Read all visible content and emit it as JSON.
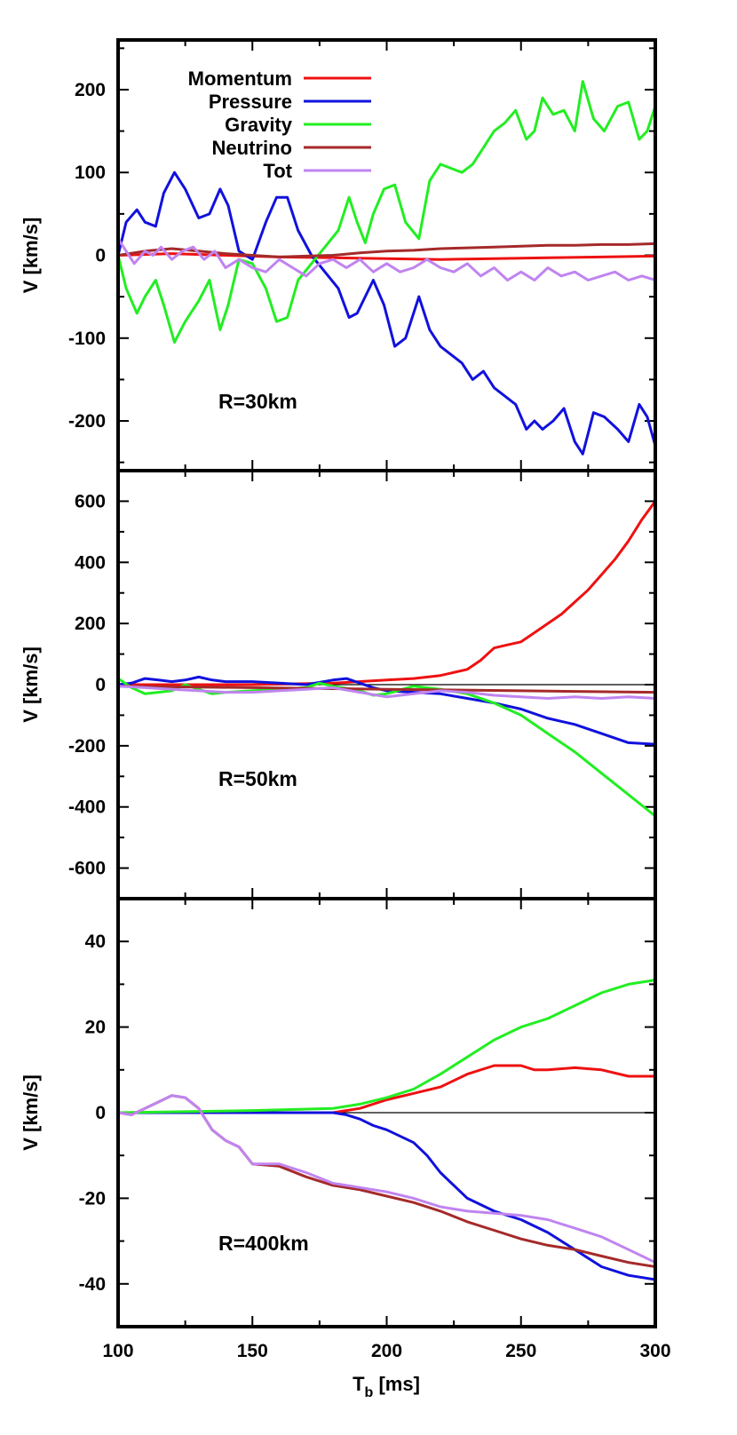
{
  "colors": {
    "Momentum": "#ee1111",
    "Pressure": "#1111dd",
    "Gravity": "#22ee22",
    "Neutrino": "#a52a2a",
    "Tot": "#c084f0"
  },
  "chart_data": [
    {
      "type": "line",
      "panel_label": "R=30km",
      "xlim": [
        100,
        300
      ],
      "ylim": [
        -260,
        260
      ],
      "yticks": [
        -200,
        -100,
        0,
        100,
        200
      ],
      "xticks": [
        100,
        150,
        200,
        250,
        300
      ],
      "ylabel": "V [km/s]",
      "zero_line": false,
      "legend": {
        "placement": "top-left",
        "entries": [
          "Momentum",
          "Pressure",
          "Gravity",
          "Neutrino",
          "Tot"
        ]
      },
      "series": [
        {
          "name": "Momentum",
          "x": [
            100,
            120,
            140,
            160,
            180,
            200,
            220,
            240,
            260,
            280,
            300
          ],
          "y": [
            0,
            2,
            0,
            -2,
            -3,
            -4,
            -5,
            -4,
            -3,
            -2,
            -1
          ]
        },
        {
          "name": "Pressure",
          "x": [
            100,
            103,
            107,
            110,
            114,
            117,
            121,
            125,
            130,
            134,
            138,
            141,
            145,
            150,
            155,
            159,
            163,
            167,
            172,
            177,
            182,
            186,
            189,
            192,
            195,
            199,
            203,
            207,
            212,
            216,
            220,
            224,
            228,
            232,
            236,
            240,
            244,
            248,
            252,
            255,
            258,
            262,
            266,
            270,
            273,
            277,
            281,
            286,
            290,
            294,
            297,
            300
          ],
          "y": [
            0,
            40,
            55,
            40,
            35,
            75,
            100,
            80,
            45,
            50,
            80,
            60,
            5,
            -5,
            40,
            70,
            70,
            30,
            0,
            -20,
            -40,
            -75,
            -70,
            -50,
            -30,
            -60,
            -110,
            -100,
            -50,
            -90,
            -110,
            -120,
            -130,
            -150,
            -140,
            -160,
            -170,
            -180,
            -210,
            -200,
            -210,
            -200,
            -185,
            -225,
            -240,
            -190,
            -195,
            -210,
            -225,
            -180,
            -195,
            -230
          ]
        },
        {
          "name": "Gravity",
          "x": [
            100,
            103,
            107,
            110,
            114,
            117,
            121,
            125,
            130,
            134,
            138,
            141,
            145,
            150,
            155,
            159,
            163,
            167,
            172,
            177,
            182,
            186,
            189,
            192,
            195,
            199,
            203,
            207,
            212,
            216,
            220,
            224,
            228,
            232,
            236,
            240,
            244,
            248,
            252,
            255,
            258,
            262,
            266,
            270,
            273,
            277,
            281,
            286,
            290,
            294,
            297,
            300
          ],
          "y": [
            0,
            -40,
            -70,
            -50,
            -30,
            -60,
            -105,
            -80,
            -55,
            -30,
            -90,
            -60,
            -5,
            -10,
            -40,
            -80,
            -75,
            -30,
            -10,
            10,
            30,
            70,
            40,
            15,
            50,
            80,
            85,
            40,
            20,
            90,
            110,
            105,
            100,
            110,
            130,
            150,
            160,
            175,
            140,
            150,
            190,
            170,
            175,
            150,
            210,
            165,
            150,
            180,
            185,
            140,
            150,
            180
          ]
        },
        {
          "name": "Neutrino",
          "x": [
            100,
            110,
            120,
            130,
            140,
            150,
            160,
            170,
            180,
            190,
            200,
            210,
            220,
            230,
            240,
            250,
            260,
            270,
            280,
            290,
            300
          ],
          "y": [
            0,
            5,
            8,
            5,
            2,
            0,
            -2,
            -1,
            0,
            3,
            5,
            6,
            8,
            9,
            10,
            11,
            12,
            12,
            13,
            13,
            14
          ]
        },
        {
          "name": "Tot",
          "x": [
            100,
            103,
            106,
            110,
            113,
            116,
            120,
            124,
            128,
            132,
            136,
            140,
            145,
            150,
            155,
            160,
            165,
            170,
            175,
            180,
            185,
            190,
            195,
            200,
            205,
            210,
            215,
            220,
            225,
            230,
            235,
            240,
            245,
            250,
            255,
            260,
            265,
            270,
            275,
            280,
            285,
            290,
            295,
            300
          ],
          "y": [
            20,
            5,
            -10,
            5,
            0,
            10,
            -5,
            5,
            10,
            -5,
            5,
            -15,
            -5,
            -15,
            -20,
            -5,
            -15,
            -25,
            -10,
            -5,
            -15,
            -5,
            -20,
            -10,
            -20,
            -15,
            -5,
            -15,
            -20,
            -10,
            -25,
            -15,
            -30,
            -20,
            -30,
            -15,
            -25,
            -20,
            -30,
            -25,
            -20,
            -30,
            -25,
            -30
          ]
        }
      ]
    },
    {
      "type": "line",
      "panel_label": "R=50km",
      "xlim": [
        100,
        300
      ],
      "ylim": [
        -700,
        700
      ],
      "yticks": [
        -600,
        -400,
        -200,
        0,
        200,
        400,
        600
      ],
      "xticks": [
        100,
        150,
        200,
        250,
        300
      ],
      "ylabel": "V [km/s]",
      "zero_line": true,
      "series": [
        {
          "name": "Momentum",
          "x": [
            100,
            150,
            180,
            200,
            210,
            220,
            230,
            235,
            240,
            245,
            250,
            255,
            260,
            265,
            270,
            275,
            280,
            285,
            290,
            295,
            300
          ],
          "y": [
            0,
            0,
            5,
            15,
            20,
            30,
            50,
            80,
            120,
            130,
            140,
            170,
            200,
            230,
            270,
            310,
            360,
            410,
            470,
            540,
            600
          ]
        },
        {
          "name": "Pressure",
          "x": [
            100,
            105,
            110,
            115,
            120,
            125,
            130,
            135,
            140,
            150,
            160,
            170,
            180,
            185,
            190,
            195,
            200,
            210,
            220,
            230,
            240,
            250,
            260,
            270,
            280,
            290,
            300
          ],
          "y": [
            0,
            5,
            20,
            15,
            10,
            15,
            25,
            15,
            10,
            10,
            5,
            0,
            15,
            20,
            5,
            -10,
            -20,
            -25,
            -30,
            -45,
            -60,
            -80,
            -110,
            -130,
            -160,
            -190,
            -195
          ]
        },
        {
          "name": "Gravity",
          "x": [
            100,
            105,
            110,
            115,
            120,
            125,
            130,
            135,
            140,
            150,
            160,
            170,
            175,
            180,
            190,
            195,
            200,
            210,
            220,
            230,
            240,
            250,
            260,
            270,
            280,
            290,
            300
          ],
          "y": [
            20,
            -10,
            -30,
            -25,
            -20,
            0,
            -15,
            -30,
            -25,
            -20,
            -15,
            -10,
            5,
            -5,
            -20,
            -35,
            -30,
            -5,
            -15,
            -30,
            -60,
            -100,
            -160,
            -220,
            -290,
            -360,
            -430
          ]
        },
        {
          "name": "Neutrino",
          "x": [
            100,
            150,
            200,
            250,
            300
          ],
          "y": [
            -5,
            -10,
            -15,
            -20,
            -25
          ]
        },
        {
          "name": "Tot",
          "x": [
            100,
            110,
            120,
            130,
            140,
            150,
            160,
            170,
            180,
            190,
            200,
            210,
            220,
            230,
            240,
            250,
            260,
            270,
            280,
            290,
            300
          ],
          "y": [
            -5,
            -10,
            -15,
            -20,
            -25,
            -25,
            -20,
            -15,
            -10,
            -25,
            -40,
            -30,
            -20,
            -25,
            -35,
            -40,
            -45,
            -40,
            -45,
            -40,
            -45
          ]
        }
      ]
    },
    {
      "type": "line",
      "panel_label": "R=400km",
      "xlim": [
        100,
        300
      ],
      "ylim": [
        -50,
        50
      ],
      "yticks": [
        -40,
        -20,
        0,
        20,
        40
      ],
      "xticks": [
        100,
        150,
        200,
        250,
        300
      ],
      "xticklabels": [
        "100",
        "150",
        "200",
        "250",
        "300"
      ],
      "ylabel": "V [km/s]",
      "xlabel_main": "T",
      "xlabel_sub": "b",
      "xlabel_unit": " [ms]",
      "zero_line": true,
      "series": [
        {
          "name": "Momentum",
          "x": [
            100,
            150,
            180,
            190,
            200,
            210,
            220,
            230,
            240,
            250,
            255,
            260,
            270,
            280,
            290,
            300
          ],
          "y": [
            0,
            0,
            0,
            1,
            3,
            4.5,
            6,
            9,
            11,
            11,
            10,
            10,
            10.5,
            10,
            8.5,
            8.5
          ]
        },
        {
          "name": "Pressure",
          "x": [
            100,
            150,
            180,
            185,
            190,
            195,
            200,
            210,
            215,
            220,
            230,
            240,
            250,
            260,
            270,
            280,
            290,
            300
          ],
          "y": [
            0,
            0,
            0,
            -0.5,
            -1.5,
            -3,
            -4,
            -7,
            -10,
            -14,
            -20,
            -23,
            -25,
            -28,
            -32,
            -36,
            -38,
            -39
          ]
        },
        {
          "name": "Gravity",
          "x": [
            100,
            150,
            180,
            190,
            200,
            210,
            220,
            230,
            240,
            250,
            260,
            270,
            280,
            290,
            300
          ],
          "y": [
            0,
            0.5,
            1,
            2,
            3.5,
            5.5,
            9,
            13,
            17,
            20,
            22,
            25,
            28,
            30,
            31
          ]
        },
        {
          "name": "Neutrino",
          "x": [
            100,
            105,
            110,
            115,
            120,
            125,
            130,
            135,
            140,
            145,
            150,
            160,
            170,
            180,
            190,
            200,
            210,
            220,
            230,
            240,
            250,
            260,
            270,
            280,
            290,
            300
          ],
          "y": [
            0,
            -0.5,
            1,
            2.5,
            4,
            3.5,
            1,
            -4,
            -6.5,
            -8,
            -12,
            -12.5,
            -15,
            -17,
            -18,
            -19.5,
            -21,
            -23,
            -25.5,
            -27.5,
            -29.5,
            -31,
            -32,
            -33.5,
            -35,
            -36
          ]
        },
        {
          "name": "Tot",
          "x": [
            100,
            105,
            110,
            115,
            120,
            125,
            130,
            135,
            140,
            145,
            150,
            160,
            170,
            180,
            190,
            200,
            210,
            220,
            230,
            240,
            250,
            260,
            270,
            280,
            290,
            300
          ],
          "y": [
            0,
            -0.5,
            1,
            2.5,
            4,
            3.5,
            1,
            -4,
            -6.5,
            -8,
            -12,
            -12,
            -14,
            -16.5,
            -17.5,
            -18.5,
            -20,
            -22,
            -23,
            -23.5,
            -24,
            -25,
            -27,
            -29,
            -32,
            -35
          ]
        }
      ]
    }
  ]
}
